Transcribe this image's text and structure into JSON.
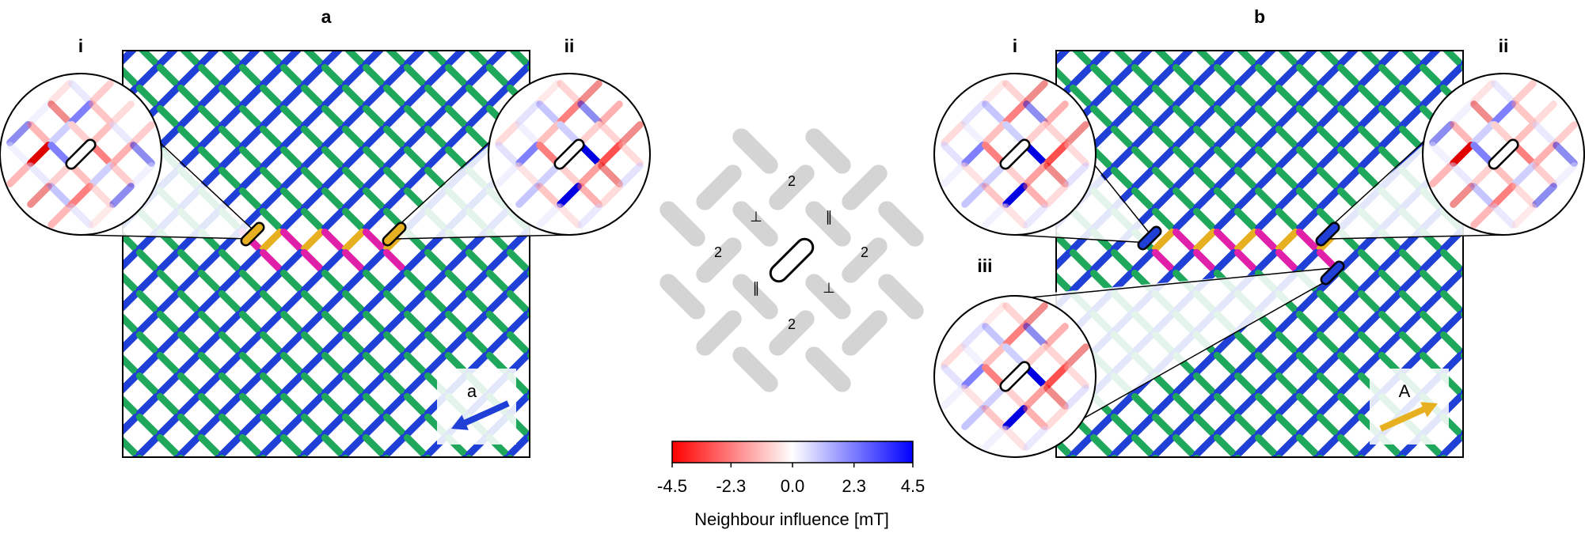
{
  "panels": [
    {
      "label": "a",
      "insets": [
        "i",
        "ii"
      ],
      "arrow_label": "a"
    },
    {
      "label": "b",
      "insets": [
        "i",
        "ii",
        "iii"
      ],
      "arrow_label": "A"
    }
  ],
  "neighbour_diagram": {
    "labels": [
      "2",
      "⊥",
      "∥",
      "2",
      "2",
      "∥",
      "⊥",
      "2"
    ]
  },
  "colorbar": {
    "lim": [
      -4.5,
      4.5
    ],
    "ticks": [
      -4.5,
      -2.3,
      {
        "value": 0,
        "label": "0.0"
      },
      2.3,
      4.5
    ],
    "label": "Neighbour influence [mT]",
    "colors": [
      "#ff0000",
      "#ffffff",
      "#0000ff"
    ]
  }
}
